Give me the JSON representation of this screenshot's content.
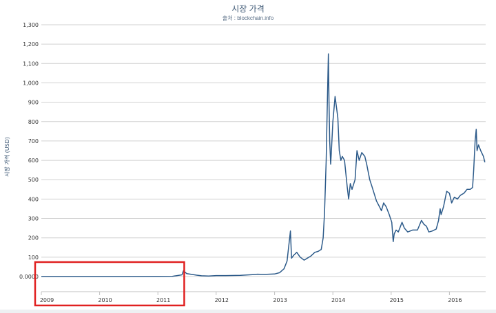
{
  "chart_data": {
    "type": "line",
    "title": "시장 가격",
    "subtitle": "출처 : blockchain.info",
    "xlabel": "",
    "ylabel": "시장 가격 (USD)",
    "ylim": [
      0,
      1300
    ],
    "xlim": [
      "2009-01-01",
      "2016-08-15"
    ],
    "y_tick_labels": [
      "0.0000",
      "100",
      "200",
      "300",
      "400",
      "500",
      "600",
      "700",
      "800",
      "900",
      "1,000",
      "1,100",
      "1,200",
      "1,300"
    ],
    "x_tick_labels": [
      "2009",
      "2010",
      "2011",
      "2012",
      "2013",
      "2014",
      "2015",
      "2016"
    ],
    "grid": true,
    "line_color": "#2d5b8a",
    "highlight_box": {
      "x_range": [
        "2009-01-01",
        "2011-06-15"
      ],
      "color": "#e02020"
    },
    "series": [
      {
        "x": [
          "2009-01-01",
          "2010-01-01",
          "2010-07-01",
          "2011-01-01",
          "2011-04-01",
          "2011-06-01",
          "2011-06-10",
          "2011-07-01",
          "2011-08-01",
          "2011-09-01",
          "2011-10-01",
          "2011-11-15",
          "2012-01-01",
          "2012-03-01",
          "2012-06-01",
          "2012-08-15",
          "2012-09-15",
          "2012-11-01",
          "2013-01-01",
          "2013-02-01",
          "2013-03-01",
          "2013-03-20",
          "2013-04-10",
          "2013-04-17",
          "2013-05-01",
          "2013-05-20",
          "2013-06-10",
          "2013-07-05",
          "2013-07-25",
          "2013-08-15",
          "2013-09-10",
          "2013-10-01",
          "2013-10-20",
          "2013-11-01",
          "2013-11-10",
          "2013-11-20",
          "2013-11-25",
          "2013-12-04",
          "2013-12-08",
          "2013-12-12",
          "2013-12-18",
          "2013-12-23",
          "2014-01-01",
          "2014-01-15",
          "2014-02-01",
          "2014-02-10",
          "2014-02-20",
          "2014-03-01",
          "2014-03-15",
          "2014-04-01",
          "2014-04-10",
          "2014-04-20",
          "2014-05-01",
          "2014-05-20",
          "2014-06-01",
          "2014-06-15",
          "2014-07-01",
          "2014-07-20",
          "2014-08-01",
          "2014-08-20",
          "2014-09-01",
          "2014-09-20",
          "2014-10-01",
          "2014-10-20",
          "2014-11-01",
          "2014-11-15",
          "2014-12-01",
          "2014-12-20",
          "2015-01-05",
          "2015-01-14",
          "2015-01-20",
          "2015-02-01",
          "2015-02-15",
          "2015-03-10",
          "2015-03-25",
          "2015-04-15",
          "2015-05-15",
          "2015-06-15",
          "2015-07-10",
          "2015-07-25",
          "2015-08-10",
          "2015-08-25",
          "2015-09-15",
          "2015-10-10",
          "2015-10-25",
          "2015-11-04",
          "2015-11-10",
          "2015-11-25",
          "2015-12-15",
          "2016-01-01",
          "2016-01-15",
          "2016-02-01",
          "2016-02-20",
          "2016-03-10",
          "2016-04-01",
          "2016-04-20",
          "2016-05-10",
          "2016-05-25",
          "2016-06-01",
          "2016-06-10",
          "2016-06-17",
          "2016-06-22",
          "2016-07-01",
          "2016-07-15",
          "2016-08-01",
          "2016-08-10"
        ],
        "values": [
          0,
          0,
          0.1,
          0.3,
          1,
          9,
          30,
          15,
          11,
          7,
          4,
          3,
          5,
          5,
          6,
          10,
          12,
          11,
          13,
          20,
          40,
          80,
          235,
          95,
          110,
          125,
          100,
          85,
          95,
          105,
          125,
          130,
          140,
          200,
          330,
          600,
          800,
          1150,
          900,
          700,
          580,
          650,
          800,
          930,
          820,
          650,
          600,
          620,
          600,
          460,
          400,
          480,
          450,
          500,
          650,
          600,
          640,
          620,
          580,
          500,
          470,
          420,
          390,
          360,
          340,
          380,
          360,
          320,
          280,
          180,
          220,
          240,
          230,
          280,
          250,
          230,
          240,
          240,
          290,
          270,
          260,
          230,
          235,
          245,
          290,
          350,
          320,
          360,
          440,
          430,
          380,
          410,
          400,
          420,
          430,
          450,
          450,
          460,
          550,
          700,
          760,
          650,
          680,
          650,
          620,
          590
        ]
      }
    ]
  }
}
